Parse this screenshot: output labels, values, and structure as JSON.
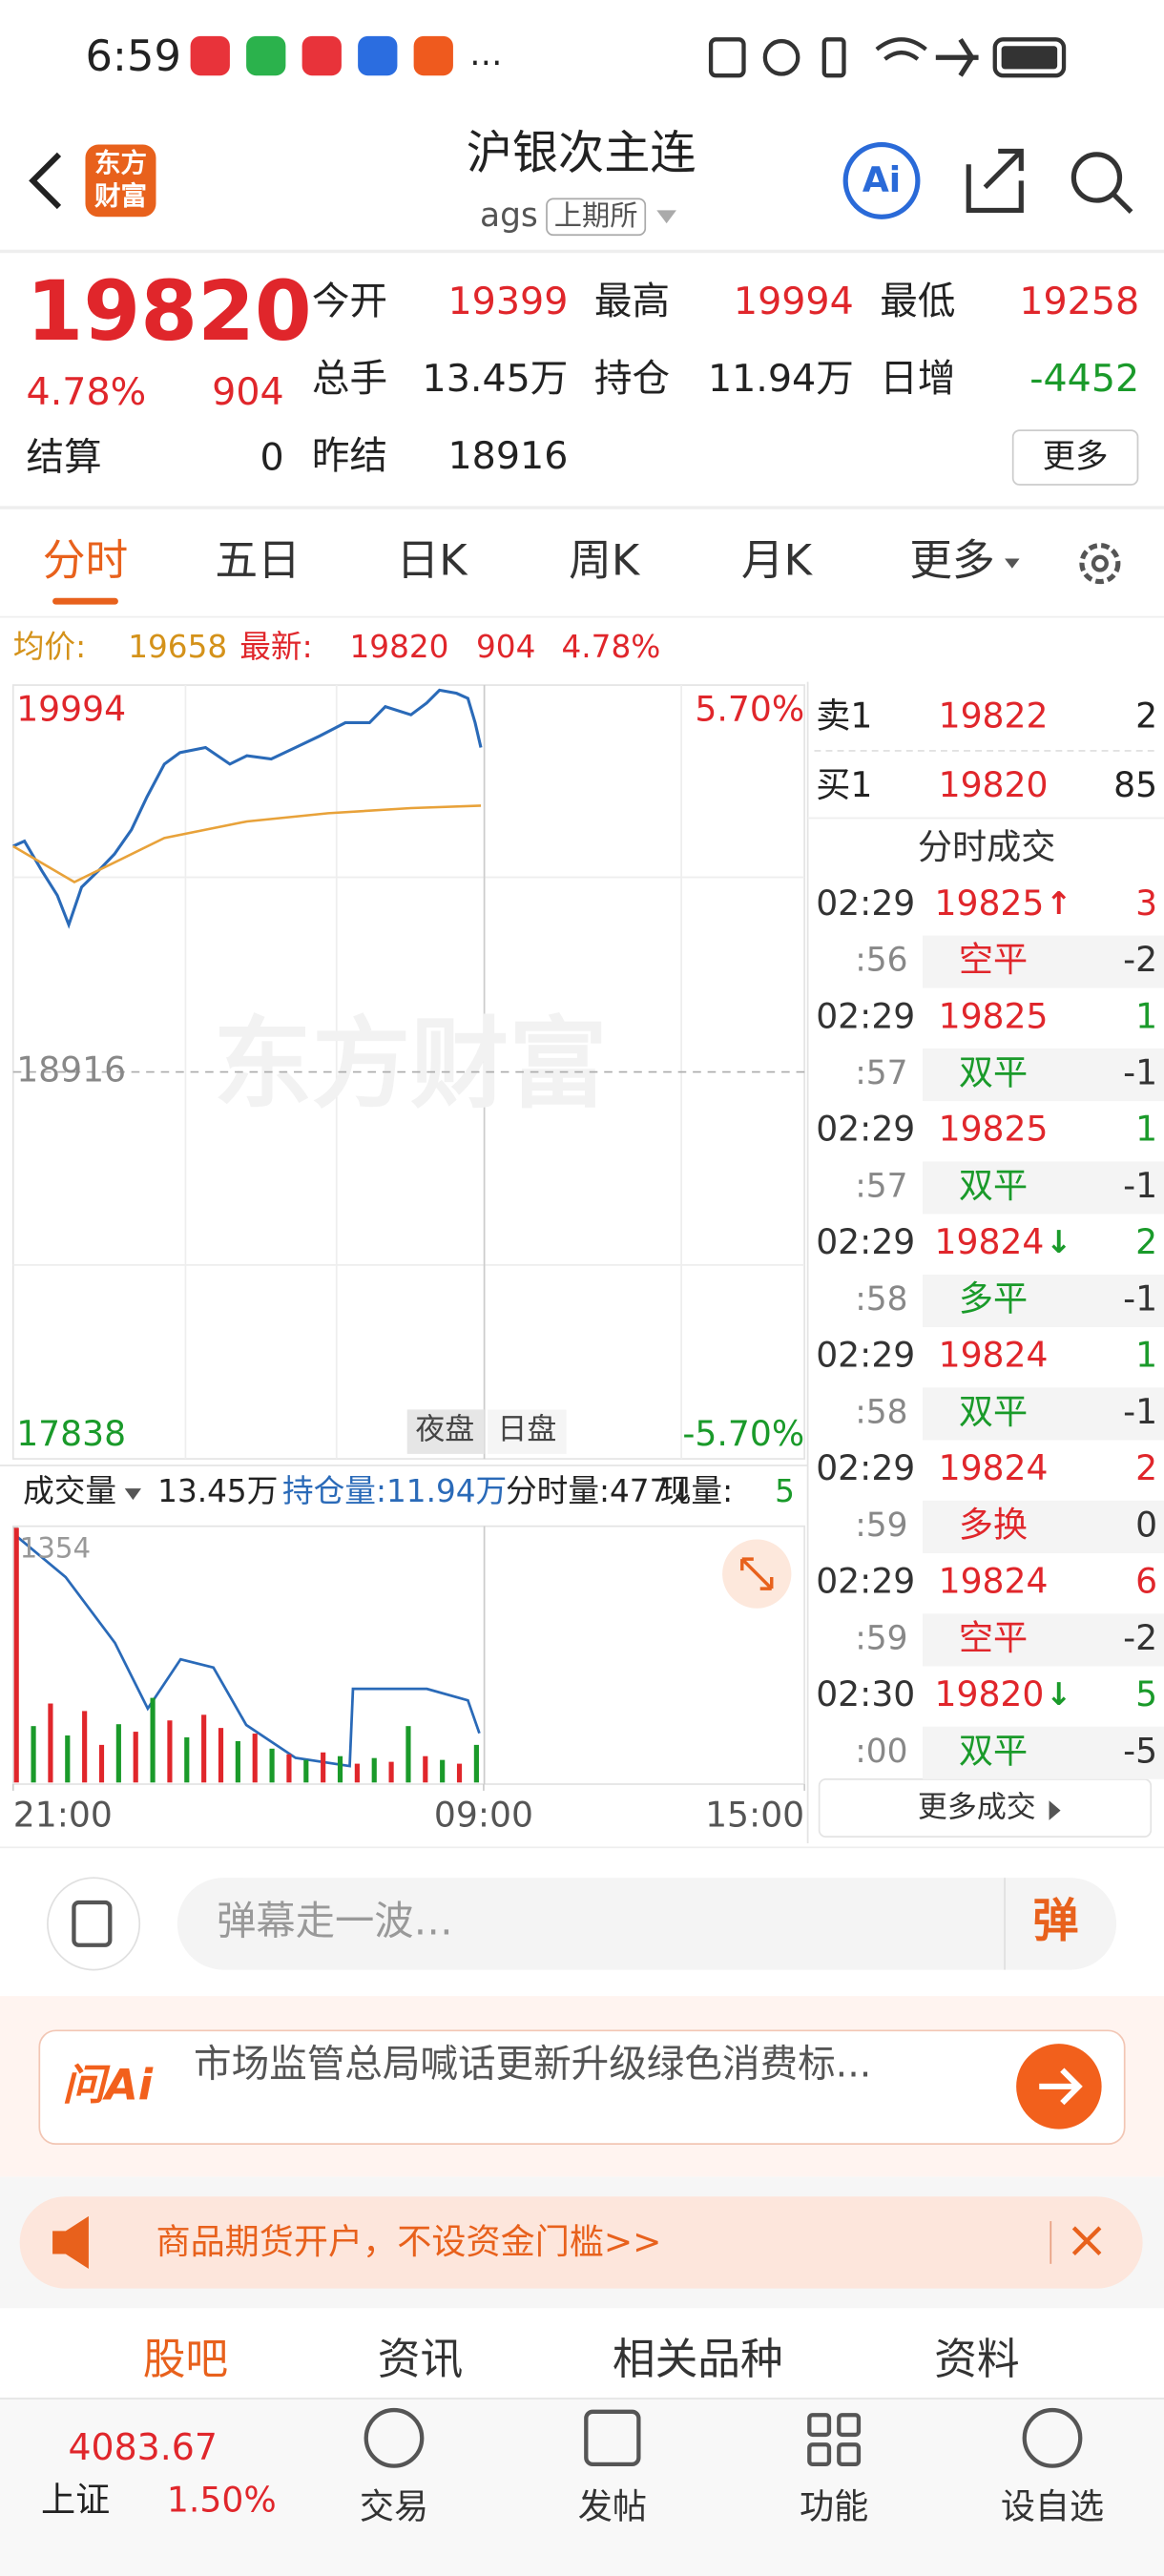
{
  "status": {
    "time": "6:59",
    "more": "…"
  },
  "header": {
    "logo": [
      "东方",
      "财富"
    ],
    "title": "沪银次主连",
    "code": "ags",
    "exchange": "上期所",
    "ai": "Ai"
  },
  "quote": {
    "price": 19820,
    "change_pct": "4.78%",
    "change": 904,
    "settle_label": "结算",
    "settle": 0,
    "fields": [
      {
        "label": "今开",
        "value": 19399,
        "color": "#e0262b"
      },
      {
        "label": "最高",
        "value": 19994,
        "color": "#e0262b"
      },
      {
        "label": "最低",
        "value": 19258,
        "color": "#e0262b"
      },
      {
        "label": "总手",
        "value": "13.45万",
        "color": "#222222"
      },
      {
        "label": "持仓",
        "value": "11.94万",
        "color": "#222222"
      },
      {
        "label": "日增",
        "value": -4452,
        "color": "#1a9a2a"
      },
      {
        "label": "昨结",
        "value": 18916,
        "color": "#222222"
      }
    ],
    "more": "更多"
  },
  "tabs": {
    "items": [
      "分时",
      "五日",
      "日K",
      "周K",
      "月K",
      "更多"
    ],
    "active": 0
  },
  "info": {
    "avg_label": "均价:",
    "avg": 19658,
    "latest_label": "最新:",
    "latest": 19820,
    "change": 904,
    "change_pct": "4.78%"
  },
  "chart_data": [
    {
      "type": "line",
      "xlim": [
        0,
        555
      ],
      "ylim": [
        17838,
        19994
      ],
      "y2lim": [
        -5.7,
        5.7
      ],
      "xticks": [
        {
          "value": 0,
          "label": "21:00"
        },
        {
          "value": 330,
          "label": "09:00"
        },
        {
          "value": 555,
          "label": "15:00"
        }
      ],
      "yticks": [
        17838,
        18916,
        19994
      ],
      "y2ticks": [
        {
          "value": -5.7,
          "label": "-5.70%"
        },
        {
          "value": 5.7,
          "label": "5.70%"
        }
      ],
      "series": [
        {
          "color": "#2a6ab8",
          "x": [
            0,
            8,
            20,
            31,
            39,
            48,
            60,
            71,
            83,
            94,
            106,
            117,
            135,
            152,
            164,
            181,
            198,
            215,
            233,
            250,
            261,
            279,
            290,
            299,
            311,
            319,
            324,
            328
          ],
          "values": [
            19545,
            19559,
            19477,
            19408,
            19326,
            19431,
            19477,
            19523,
            19591,
            19683,
            19774,
            19806,
            19820,
            19774,
            19797,
            19788,
            19820,
            19852,
            19889,
            19889,
            19934,
            19911,
            19944,
            19980,
            19971,
            19957,
            19889,
            19820
          ]
        },
        {
          "color": "#e8a23a",
          "x": [
            0,
            43,
            106,
            164,
            221,
            279,
            328
          ],
          "values": [
            19545,
            19445,
            19568,
            19614,
            19637,
            19651,
            19658
          ]
        }
      ]
    },
    {
      "type": "bar",
      "ylim": [
        0,
        1354
      ],
      "yticks": [
        1354
      ],
      "x": [
        0,
        12,
        24,
        36,
        48,
        60,
        72,
        84,
        96,
        108,
        120,
        132,
        144,
        156,
        168,
        180,
        192,
        204,
        216,
        228,
        240,
        252,
        264,
        276,
        288,
        300,
        312,
        324
      ],
      "values": [
        1354,
        300,
        420,
        250,
        380,
        200,
        310,
        270,
        450,
        330,
        240,
        360,
        290,
        220,
        260,
        180,
        150,
        120,
        160,
        140,
        100,
        130,
        110,
        300,
        140,
        120,
        100,
        200
      ],
      "colors": [
        "#e0262b",
        "#1a9a2a",
        "#e0262b",
        "#1a9a2a",
        "#e0262b",
        "#e0262b",
        "#1a9a2a",
        "#e0262b",
        "#1a9a2a",
        "#e0262b",
        "#1a9a2a",
        "#e0262b",
        "#e0262b",
        "#1a9a2a",
        "#e0262b",
        "#1a9a2a",
        "#e0262b",
        "#1a9a2a",
        "#e0262b",
        "#1a9a2a",
        "#e0262b",
        "#1a9a2a",
        "#e0262b",
        "#1a9a2a",
        "#e0262b",
        "#1a9a2a",
        "#e0262b",
        "#1a9a2a"
      ]
    }
  ],
  "chart_extra": {
    "watermark": "东方财富",
    "sessions": [
      "夜盘",
      "日盘"
    ]
  },
  "volume_header": {
    "label": "成交量",
    "volume": "13.45万",
    "oi": "持仓量:11.94万",
    "tick_vol": "分时量:477↓",
    "now_label": "现量:",
    "now": 5
  },
  "book": {
    "title": "分时成交",
    "levels": [
      {
        "label": "卖1",
        "price": 19822,
        "qty": 2
      },
      {
        "label": "买1",
        "price": 19820,
        "qty": 85
      }
    ],
    "trades": [
      {
        "time": "02:29",
        "price": 19825,
        "arrow": "↑",
        "arrow_color": "#e0262b",
        "qty": 3,
        "qty_color": "#e0262b"
      },
      {
        "time": ":56",
        "kind": "空平",
        "kind_color": "#e0262b",
        "qty": -2
      },
      {
        "time": "02:29",
        "price": 19825,
        "qty": 1,
        "qty_color": "#1a9a2a"
      },
      {
        "time": ":57",
        "kind": "双平",
        "kind_color": "#1a9a2a",
        "qty": -1
      },
      {
        "time": "02:29",
        "price": 19825,
        "qty": 1,
        "qty_color": "#1a9a2a"
      },
      {
        "time": ":57",
        "kind": "双平",
        "kind_color": "#1a9a2a",
        "qty": -1
      },
      {
        "time": "02:29",
        "price": 19824,
        "arrow": "↓",
        "arrow_color": "#1a9a2a",
        "qty": 2,
        "qty_color": "#1a9a2a"
      },
      {
        "time": ":58",
        "kind": "多平",
        "kind_color": "#1a9a2a",
        "qty": -1
      },
      {
        "time": "02:29",
        "price": 19824,
        "qty": 1,
        "qty_color": "#1a9a2a"
      },
      {
        "time": ":58",
        "kind": "双平",
        "kind_color": "#1a9a2a",
        "qty": -1
      },
      {
        "time": "02:29",
        "price": 19824,
        "qty": 2,
        "qty_color": "#e0262b"
      },
      {
        "time": ":59",
        "kind": "多换",
        "kind_color": "#e0262b",
        "qty": 0
      },
      {
        "time": "02:29",
        "price": 19824,
        "qty": 6,
        "qty_color": "#e0262b"
      },
      {
        "time": ":59",
        "kind": "空平",
        "kind_color": "#e0262b",
        "qty": -2
      },
      {
        "time": "02:30",
        "price": 19820,
        "arrow": "↓",
        "arrow_color": "#1a9a2a",
        "qty": 5,
        "qty_color": "#1a9a2a"
      },
      {
        "time": ":00",
        "kind": "双平",
        "kind_color": "#1a9a2a",
        "qty": -5
      }
    ],
    "more": "更多成交"
  },
  "comment": {
    "placeholder": "弹幕走一波…",
    "button": "弹"
  },
  "ai_news": {
    "brand": "问Ai",
    "text": "市场监管总局喊话更新升级绿色消费标..."
  },
  "ad": {
    "text": "商品期货开户，不设资金门槛>>"
  },
  "bottom_tabs": {
    "items": [
      "股吧",
      "资讯",
      "相关品种",
      "资料"
    ],
    "active": 0
  },
  "nav": {
    "index_value": 4083.67,
    "index_name": "上证",
    "index_pct": "1.50%",
    "items": [
      "交易",
      "发帖",
      "功能",
      "设自选"
    ]
  }
}
